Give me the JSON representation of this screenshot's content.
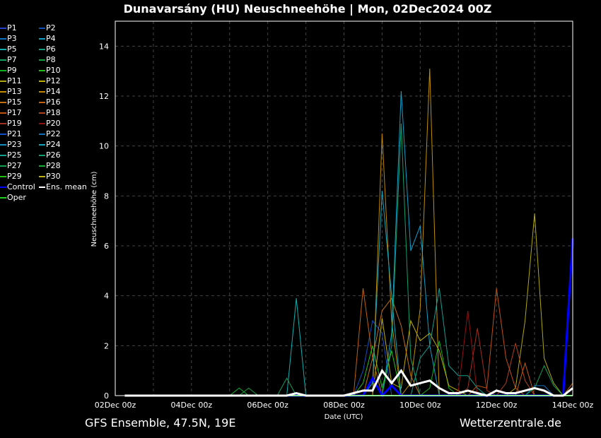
{
  "title": "Dunavarsány  (HU)  Neuschneehöhe | Mon, 02Dec2024 00Z",
  "footer": {
    "left": "GFS Ensemble, 47.5N, 19E",
    "right": "Wetterzentrale.de"
  },
  "chart_data": {
    "type": "line",
    "xlabel": "Date (UTC)",
    "ylabel": "Neuschneehöhe (cm)",
    "xlim": [
      "2024-12-02 00Z",
      "2024-12-14 00Z"
    ],
    "ylim": [
      0,
      15
    ],
    "x_step_hours": 6,
    "xticks": [
      "02Dec 00z",
      "04Dec 00z",
      "06Dec 00z",
      "08Dec 00z",
      "10Dec 00z",
      "12Dec 00z",
      "14Dec 00z"
    ],
    "yticks": [
      0,
      2,
      4,
      6,
      8,
      10,
      12,
      14
    ],
    "grid": true,
    "legend_placement": "left-outside",
    "unlisted_points_value": 0,
    "series": [
      {
        "name": "P1",
        "color": "#2040c8",
        "points": []
      },
      {
        "name": "P2",
        "color": "#1050c0",
        "points": [
          [
            "2024-12-08 12Z",
            1.0
          ],
          [
            "2024-12-08 18Z",
            3.0
          ],
          [
            "2024-12-09 00Z",
            2.5
          ]
        ]
      },
      {
        "name": "P3",
        "color": "#1070c0",
        "points": [
          [
            "2024-12-13 00Z",
            0.4
          ],
          [
            "2024-12-13 06Z",
            0.4
          ]
        ]
      },
      {
        "name": "P4",
        "color": "#10a0c8",
        "points": [
          [
            "2024-12-09 06Z",
            2.5
          ],
          [
            "2024-12-09 12Z",
            12.2
          ],
          [
            "2024-12-09 18Z",
            5.8
          ],
          [
            "2024-12-10 00Z",
            6.8
          ],
          [
            "2024-12-10 06Z",
            2.0
          ]
        ]
      },
      {
        "name": "P5",
        "color": "#10b0b0",
        "points": [
          [
            "2024-12-06 18Z",
            3.9
          ]
        ]
      },
      {
        "name": "P6",
        "color": "#10a080",
        "points": []
      },
      {
        "name": "P7",
        "color": "#10a060",
        "points": [
          [
            "2024-12-06 12Z",
            0.7
          ]
        ]
      },
      {
        "name": "P8",
        "color": "#10a040",
        "points": [
          [
            "2024-12-05 12Z",
            0.3
          ]
        ]
      },
      {
        "name": "P9",
        "color": "#10b020",
        "points": [
          [
            "2024-12-10 06Z",
            0.3
          ],
          [
            "2024-12-10 12Z",
            2.2
          ],
          [
            "2024-12-10 18Z",
            0.3
          ]
        ]
      },
      {
        "name": "P10",
        "color": "#20c010",
        "points": [
          [
            "2024-12-08 12Z",
            0.5
          ],
          [
            "2024-12-08 18Z",
            2.0
          ],
          [
            "2024-12-09 00Z",
            0.3
          ],
          [
            "2024-12-09 06Z",
            1.8
          ]
        ]
      },
      {
        "name": "P11",
        "color": "#b0a810",
        "points": [
          [
            "2024-12-12 12Z",
            0.3
          ],
          [
            "2024-12-12 18Z",
            3.0
          ],
          [
            "2024-12-13 00Z",
            7.3
          ],
          [
            "2024-12-13 06Z",
            1.5
          ],
          [
            "2024-12-13 12Z",
            0.5
          ]
        ]
      },
      {
        "name": "P12",
        "color": "#c0b000",
        "points": [
          [
            "2024-12-09 00Z",
            3.1
          ],
          [
            "2024-12-09 06Z",
            0.5
          ],
          [
            "2024-12-09 12Z",
            0.3
          ],
          [
            "2024-12-09 18Z",
            3.0
          ],
          [
            "2024-12-10 00Z",
            2.2
          ],
          [
            "2024-12-10 06Z",
            2.5
          ],
          [
            "2024-12-10 12Z",
            1.8
          ],
          [
            "2024-12-10 18Z",
            0.4
          ],
          [
            "2024-12-11 00Z",
            0.2
          ]
        ]
      },
      {
        "name": "P13",
        "color": "#c09000",
        "points": [
          [
            "2024-12-09 18Z",
            0.5
          ],
          [
            "2024-12-10 00Z",
            3.5
          ],
          [
            "2024-12-10 06Z",
            13.1
          ]
        ]
      },
      {
        "name": "P14",
        "color": "#c08800",
        "points": [
          [
            "2024-12-09 00Z",
            10.5
          ],
          [
            "2024-12-09 06Z",
            3.0
          ]
        ]
      },
      {
        "name": "P15",
        "color": "#c07010",
        "points": [
          [
            "2024-12-08 18Z",
            1.5
          ],
          [
            "2024-12-09 00Z",
            3.4
          ],
          [
            "2024-12-09 06Z",
            3.9
          ],
          [
            "2024-12-09 12Z",
            2.8
          ],
          [
            "2024-12-09 18Z",
            0.8
          ]
        ]
      },
      {
        "name": "P16",
        "color": "#c06010",
        "points": [
          [
            "2024-12-08 12Z",
            4.3
          ],
          [
            "2024-12-08 18Z",
            1.5
          ],
          [
            "2024-12-12 18Z",
            1.3
          ],
          [
            "2024-12-14 00Z",
            0.5
          ]
        ]
      },
      {
        "name": "P17",
        "color": "#c05010",
        "points": [
          [
            "2024-12-11 12Z",
            0.4
          ],
          [
            "2024-12-11 18Z",
            0.3
          ],
          [
            "2024-12-12 00Z",
            4.3
          ],
          [
            "2024-12-12 06Z",
            1.5
          ],
          [
            "2024-12-12 12Z",
            0.3
          ]
        ]
      },
      {
        "name": "P18",
        "color": "#b04020",
        "points": [
          [
            "2024-12-12 06Z",
            0.5
          ],
          [
            "2024-12-12 12Z",
            2.1
          ],
          [
            "2024-12-12 18Z",
            0.6
          ]
        ]
      },
      {
        "name": "P19",
        "color": "#a03020",
        "points": [
          [
            "2024-12-11 06Z",
            0.3
          ],
          [
            "2024-12-11 12Z",
            2.7
          ],
          [
            "2024-12-11 18Z",
            0.2
          ]
        ]
      },
      {
        "name": "P20",
        "color": "#901010",
        "points": [
          [
            "2024-12-11 00Z",
            0.2
          ],
          [
            "2024-12-11 06Z",
            3.4
          ]
        ]
      },
      {
        "name": "P21",
        "color": "#1050c0",
        "points": []
      },
      {
        "name": "P22",
        "color": "#1070c0",
        "points": []
      },
      {
        "name": "P23",
        "color": "#1090c0",
        "points": []
      },
      {
        "name": "P24",
        "color": "#10a8c0",
        "points": [
          [
            "2024-12-08 18Z",
            0.5
          ],
          [
            "2024-12-09 00Z",
            8.2
          ],
          [
            "2024-12-09 06Z",
            4.0
          ]
        ]
      },
      {
        "name": "P25",
        "color": "#10a090",
        "points": [
          [
            "2024-12-10 00Z",
            1.5
          ],
          [
            "2024-12-10 06Z",
            2.0
          ],
          [
            "2024-12-10 12Z",
            4.3
          ],
          [
            "2024-12-10 18Z",
            1.2
          ],
          [
            "2024-12-11 00Z",
            0.8
          ],
          [
            "2024-12-11 06Z",
            0.8
          ],
          [
            "2024-12-11 12Z",
            0.3
          ]
        ]
      },
      {
        "name": "P26",
        "color": "#10a070",
        "points": [
          [
            "2024-12-09 06Z",
            2.0
          ],
          [
            "2024-12-09 12Z",
            10.9
          ],
          [
            "2024-12-09 18Z",
            1.5
          ]
        ]
      },
      {
        "name": "P27",
        "color": "#10a050",
        "points": [
          [
            "2024-12-13 00Z",
            0.3
          ],
          [
            "2024-12-13 06Z",
            1.2
          ],
          [
            "2024-12-13 12Z",
            0.4
          ]
        ]
      },
      {
        "name": "P28",
        "color": "#10b030",
        "points": [
          [
            "2024-12-05 06Z",
            0.3
          ]
        ]
      },
      {
        "name": "P29",
        "color": "#20c010",
        "points": []
      },
      {
        "name": "P30",
        "color": "#c0b010",
        "points": []
      },
      {
        "name": "Control",
        "color": "#0000ff",
        "width": 3,
        "points": [
          [
            "2024-12-08 18Z",
            0.7
          ],
          [
            "2024-12-09 06Z",
            0.4
          ],
          [
            "2024-12-14 00Z",
            6.3
          ]
        ]
      },
      {
        "name": "Ens. mean",
        "color": "#ffffff",
        "width": 3,
        "points": [
          [
            "2024-12-06 18Z",
            0.1
          ],
          [
            "2024-12-08 06Z",
            0.1
          ],
          [
            "2024-12-08 12Z",
            0.2
          ],
          [
            "2024-12-08 18Z",
            0.2
          ],
          [
            "2024-12-09 00Z",
            1.0
          ],
          [
            "2024-12-09 06Z",
            0.5
          ],
          [
            "2024-12-09 12Z",
            1.0
          ],
          [
            "2024-12-09 18Z",
            0.4
          ],
          [
            "2024-12-10 00Z",
            0.5
          ],
          [
            "2024-12-10 06Z",
            0.6
          ],
          [
            "2024-12-10 12Z",
            0.3
          ],
          [
            "2024-12-10 18Z",
            0.1
          ],
          [
            "2024-12-11 00Z",
            0.1
          ],
          [
            "2024-12-11 06Z",
            0.2
          ],
          [
            "2024-12-11 12Z",
            0.1
          ],
          [
            "2024-12-12 00Z",
            0.2
          ],
          [
            "2024-12-12 06Z",
            0.1
          ],
          [
            "2024-12-12 12Z",
            0.1
          ],
          [
            "2024-12-12 18Z",
            0.2
          ],
          [
            "2024-12-13 00Z",
            0.3
          ],
          [
            "2024-12-13 06Z",
            0.2
          ],
          [
            "2024-12-14 00Z",
            0.3
          ]
        ]
      },
      {
        "name": "Oper",
        "color": "#20d020",
        "width": 2,
        "points": []
      }
    ]
  }
}
